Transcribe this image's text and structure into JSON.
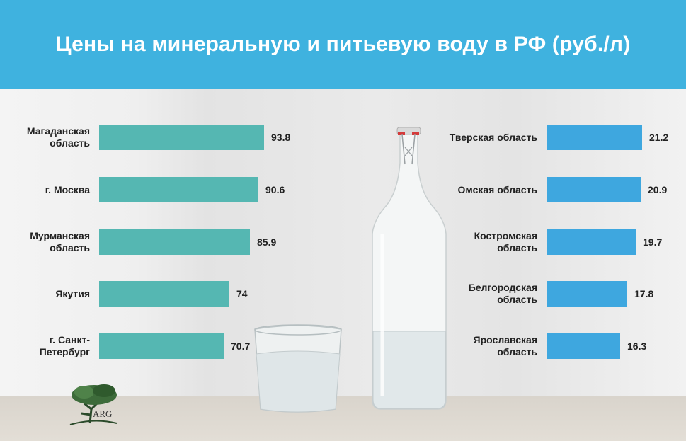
{
  "title": "Цены на минеральную и питьевую воду в РФ (руб./л)",
  "logo_text": "ARG",
  "colors": {
    "header": "#3fb2df",
    "left_bar": "#55b7b2",
    "right_bar": "#3ea7df"
  },
  "chart_data": [
    {
      "type": "bar",
      "orientation": "horizontal",
      "categories": [
        "Магаданская область",
        "г. Москва",
        "Мурманская область",
        "Якутия",
        "г. Санкт-Петербург"
      ],
      "values": [
        93.8,
        90.6,
        85.9,
        74,
        70.7
      ],
      "value_labels": [
        "93.8",
        "90.6",
        "85.9",
        "74",
        "70.7"
      ]
    },
    {
      "type": "bar",
      "orientation": "horizontal",
      "categories": [
        "Тверская область",
        "Омская область",
        "Костромская область",
        "Белгородская область",
        "Ярославская область"
      ],
      "values": [
        21.2,
        20.9,
        19.7,
        17.8,
        16.3
      ],
      "value_labels": [
        "21.2",
        "20.9",
        "19.7",
        "17.8",
        "16.3"
      ]
    }
  ]
}
